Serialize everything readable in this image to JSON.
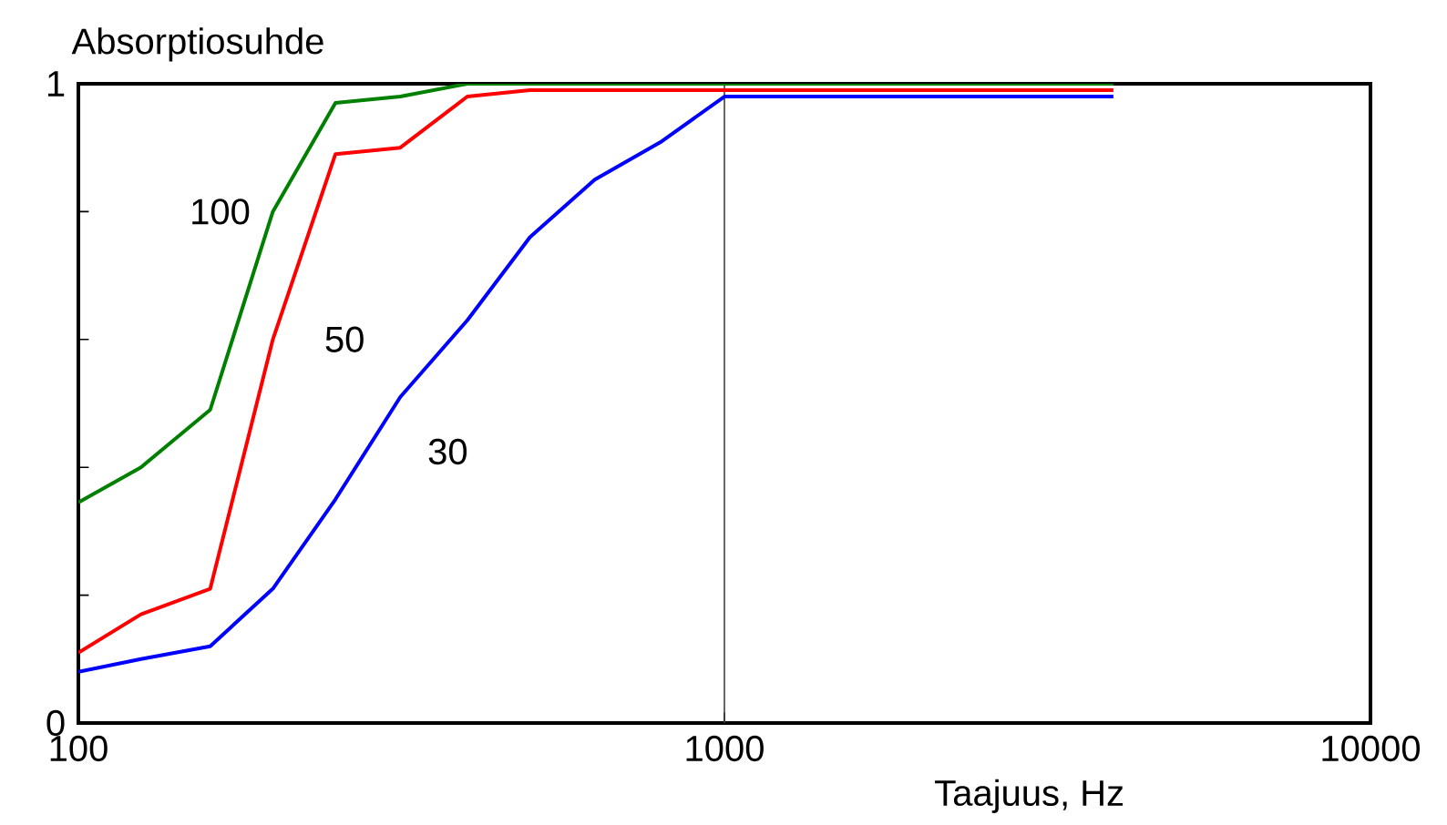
{
  "chart_data": {
    "type": "line",
    "xlabel": "Taajuus, Hz",
    "ylabel": "Absorptiosuhde",
    "log": "x",
    "marker": "none",
    "line_style": "solid",
    "x": [
      100,
      125,
      160,
      200,
      250,
      315,
      400,
      500,
      630,
      800,
      1000,
      4000
    ],
    "xlim": [
      100,
      10000
    ],
    "xticks": [
      100,
      1000,
      10000
    ],
    "ylim": [
      0,
      1
    ],
    "yticks": [
      0,
      {
        "value": 0.2,
        "label": null
      },
      {
        "value": 0.4,
        "label": null
      },
      {
        "value": 0.6,
        "label": null
      },
      {
        "value": 0.8,
        "label": null
      },
      1
    ],
    "ref_lines": [
      {
        "axis": "x",
        "value": 1000,
        "color": "#404040"
      }
    ],
    "series": [
      {
        "name": "100",
        "color": "#008000",
        "values": [
          0.345,
          0.4,
          0.49,
          0.8,
          0.97,
          0.98,
          1.0,
          1.0,
          1.0,
          1.0,
          1.0,
          1.0
        ]
      },
      {
        "name": "50",
        "color": "#ff0000",
        "values": [
          0.11,
          0.17,
          0.21,
          0.6,
          0.89,
          0.9,
          0.98,
          0.99,
          0.99,
          0.99,
          0.99,
          0.99
        ]
      },
      {
        "name": "30",
        "color": "#0000ff",
        "values": [
          0.08,
          0.1,
          0.12,
          0.21,
          0.35,
          0.51,
          0.63,
          0.76,
          0.85,
          0.91,
          0.98,
          0.98
        ]
      }
    ]
  }
}
